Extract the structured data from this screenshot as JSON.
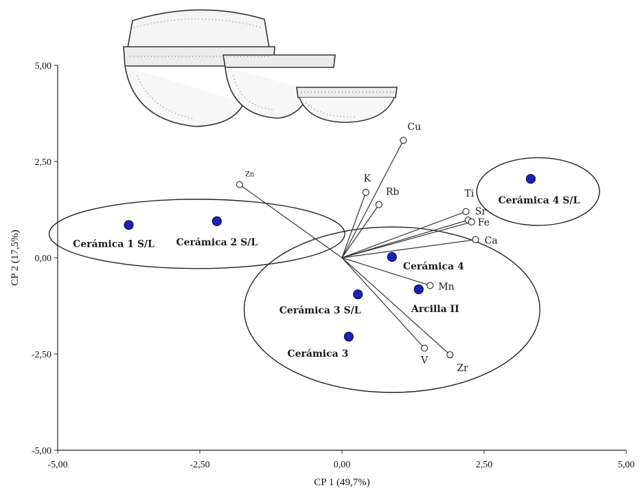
{
  "chart_data": {
    "type": "scatter",
    "title": "",
    "xlabel": "CP 1 (49,7%)",
    "ylabel": "CP 2 (17,5%)",
    "xlim": [
      -5,
      5
    ],
    "ylim": [
      -5,
      5
    ],
    "xticks": [
      "-5,00",
      "-2,50",
      "0,00",
      "2,50",
      "5,00"
    ],
    "yticks": [
      "5,00",
      "2,50",
      "0,00",
      "-2,50",
      "-5,00"
    ],
    "samples": [
      {
        "label": "Cerámica 1 S/L",
        "x": -3.75,
        "y": 0.85
      },
      {
        "label": "Cerámica 2 S/L",
        "x": -2.2,
        "y": 0.95
      },
      {
        "label": "Cerámica 4 S/L",
        "x": 3.32,
        "y": 2.05
      },
      {
        "label": "Cerámica 4",
        "x": 0.88,
        "y": 0.02
      },
      {
        "label": "Arcilla II",
        "x": 1.35,
        "y": -0.82
      },
      {
        "label": "Cerámica 3 S/L",
        "x": 0.28,
        "y": -0.95
      },
      {
        "label": "Cerámica 3",
        "x": 0.12,
        "y": -2.05
      }
    ],
    "variables": [
      {
        "label": "Zn",
        "x": -1.8,
        "y": 1.9
      },
      {
        "label": "Cu",
        "x": 1.08,
        "y": 3.05
      },
      {
        "label": "K",
        "x": 0.42,
        "y": 1.7
      },
      {
        "label": "Rb",
        "x": 0.65,
        "y": 1.38
      },
      {
        "label": "Ti",
        "x": 2.18,
        "y": 1.2
      },
      {
        "label": "Sr",
        "x": 2.22,
        "y": 0.98
      },
      {
        "label": "Fe",
        "x": 2.28,
        "y": 0.93
      },
      {
        "label": "Ca",
        "x": 2.35,
        "y": 0.47
      },
      {
        "label": "Mn",
        "x": 1.55,
        "y": -0.72
      },
      {
        "label": "V",
        "x": 1.45,
        "y": -2.35
      },
      {
        "label": "Zr",
        "x": 1.9,
        "y": -2.52
      }
    ],
    "groups": [
      {
        "cx": -2.55,
        "cy": 0.62,
        "rx": 2.6,
        "ry": 0.9
      },
      {
        "cx": 0.88,
        "cy": -1.35,
        "rx": 2.6,
        "ry": 2.15
      },
      {
        "cx": 3.45,
        "cy": 1.72,
        "rx": 1.08,
        "ry": 0.88
      }
    ],
    "colors": {
      "sample": "#1a22b8",
      "line": "#333333"
    }
  }
}
